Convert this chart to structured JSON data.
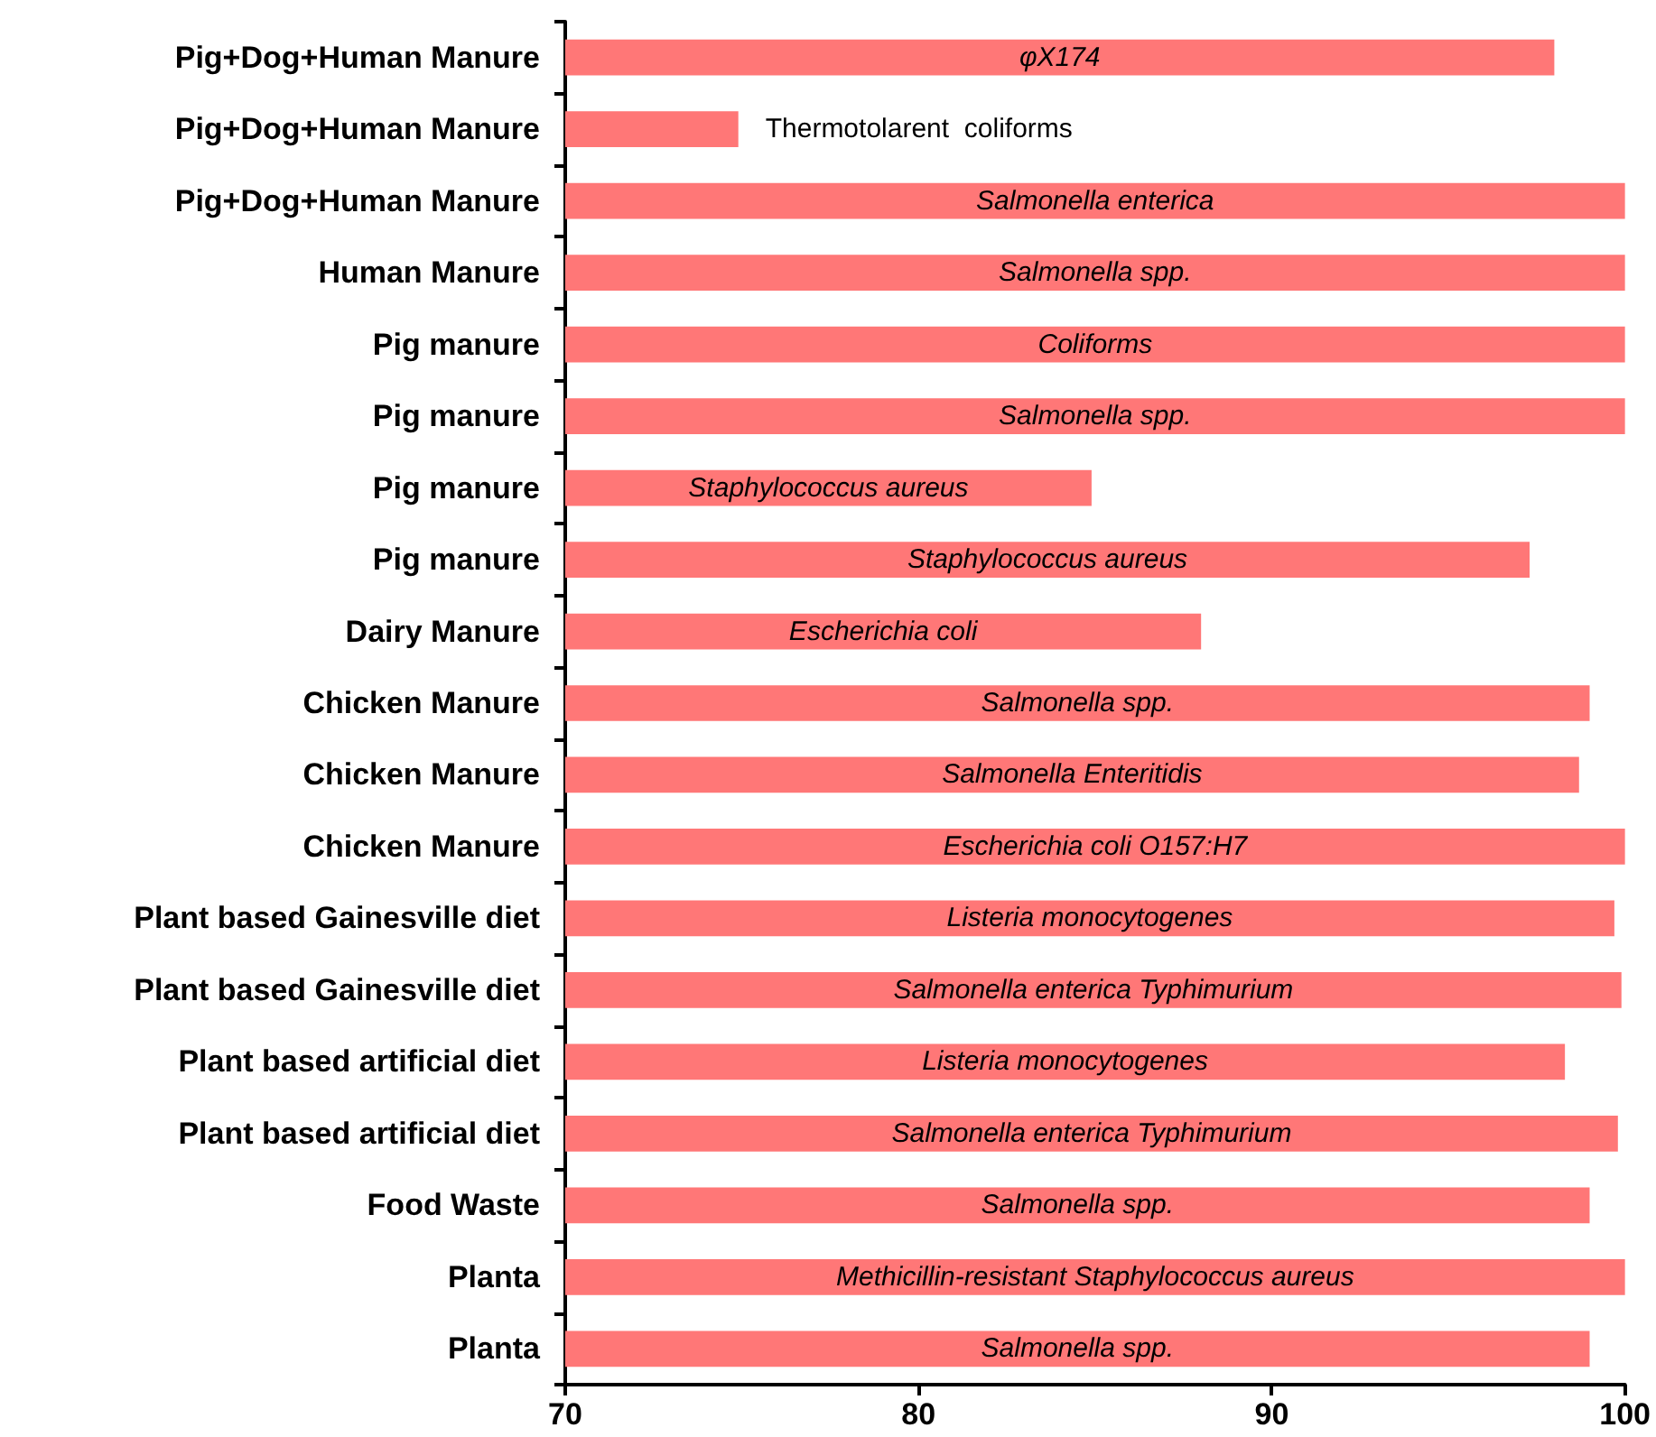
{
  "chart_data": {
    "type": "bar",
    "orientation": "horizontal",
    "categories": [
      "Pig+Dog+Human Manure",
      "Pig+Dog+Human Manure",
      "Pig+Dog+Human Manure",
      "Human Manure",
      "Pig manure",
      "Pig manure",
      "Pig manure",
      "Pig manure",
      "Dairy Manure",
      "Chicken Manure",
      "Chicken Manure",
      "Chicken Manure",
      "Plant based Gainesville diet",
      "Plant based Gainesville diet",
      "Plant based artificial diet",
      "Plant based artificial diet",
      "Food Waste",
      "Planta",
      "Planta"
    ],
    "values": [
      98.0,
      74.9,
      100,
      100,
      100,
      100,
      84.9,
      97.3,
      88.0,
      99.0,
      98.7,
      100,
      99.7,
      99.9,
      98.3,
      99.8,
      99.0,
      100,
      99.0
    ],
    "value_labels": [
      "φX174",
      "Thermotolarent  coliforms",
      "Salmonella enterica",
      "Salmonella spp.",
      "Coliforms",
      "Salmonella spp.",
      "Staphylococcus aureus",
      "Staphylococcus aureus",
      "Escherichia coli",
      "Salmonella spp.",
      "Salmonella Enteritidis",
      "Escherichia coli O157:H7",
      "Listeria monocytogenes",
      "Salmonella enterica Typhimurium",
      "Listeria monocytogenes",
      "Salmonella enterica Typhimurium",
      "Salmonella spp.",
      "Methicillin-resistant Staphylococcus aureus",
      "Salmonella spp."
    ],
    "color": "#ff7777",
    "xlim": [
      70,
      100
    ],
    "xticks": [
      70,
      80,
      90,
      100
    ],
    "grid": false
  }
}
